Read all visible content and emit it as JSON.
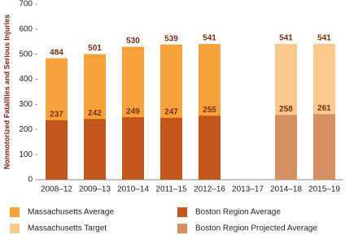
{
  "chart_data": {
    "type": "bar",
    "barmode": "overlay",
    "y_label": "Nonmotorized Fatalities and Serious Injuries",
    "categories": [
      "2008–12",
      "2009–13",
      "2010–14",
      "2011–15",
      "2012–16",
      "2013–17",
      "2014–18",
      "2015–19"
    ],
    "series": [
      {
        "name": "Massachusetts Average",
        "color": "#f5a23c",
        "values": [
          484,
          501,
          530,
          539,
          541,
          null,
          null,
          null
        ]
      },
      {
        "name": "Massachusetts Target",
        "color": "#fbc98b",
        "values": [
          null,
          null,
          null,
          null,
          null,
          null,
          541,
          541
        ]
      },
      {
        "name": "Boston Region Average",
        "color": "#c3571e",
        "values": [
          237,
          242,
          249,
          247,
          255,
          null,
          null,
          null
        ]
      },
      {
        "name": "Boston Region Projected Average",
        "color": "#d68e63",
        "values": [
          null,
          null,
          null,
          null,
          null,
          null,
          258,
          261
        ]
      }
    ],
    "ylim": [
      0,
      700
    ],
    "yticks": [
      0,
      100,
      200,
      300,
      400,
      500,
      600,
      700
    ],
    "grid": false,
    "label_color": "#7a2e0e"
  }
}
